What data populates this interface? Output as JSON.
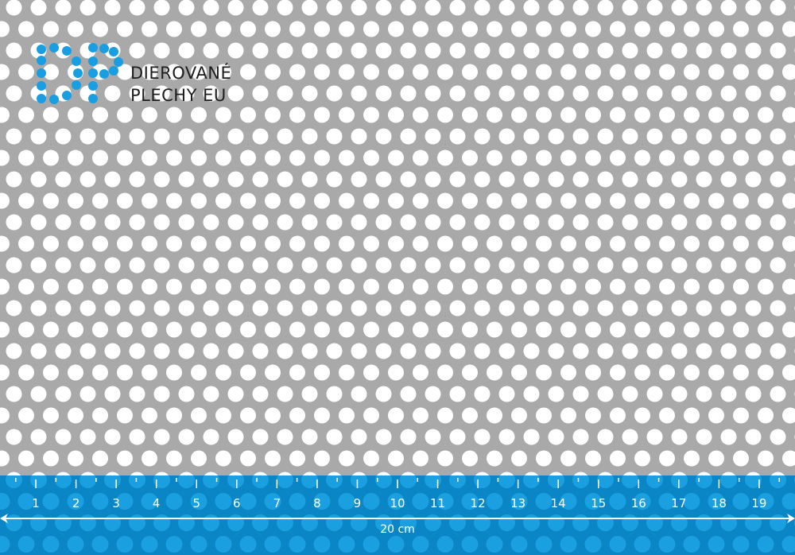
{
  "logo": {
    "monogram": "DP",
    "line1": "DIEROVANÉ",
    "line2": "PLECHY EU",
    "color": "#1a9ee2"
  },
  "sheet": {
    "metal_color": "#a9a9a9",
    "hole_color": "#ffffff"
  },
  "ruler": {
    "band_color": "#0a86c6",
    "hole_color": "#1aa0e0",
    "labels": [
      "1",
      "2",
      "3",
      "4",
      "5",
      "6",
      "7",
      "8",
      "9",
      "10",
      "11",
      "12",
      "13",
      "14",
      "15",
      "16",
      "17",
      "18",
      "19"
    ],
    "length_label": "20 cm"
  }
}
